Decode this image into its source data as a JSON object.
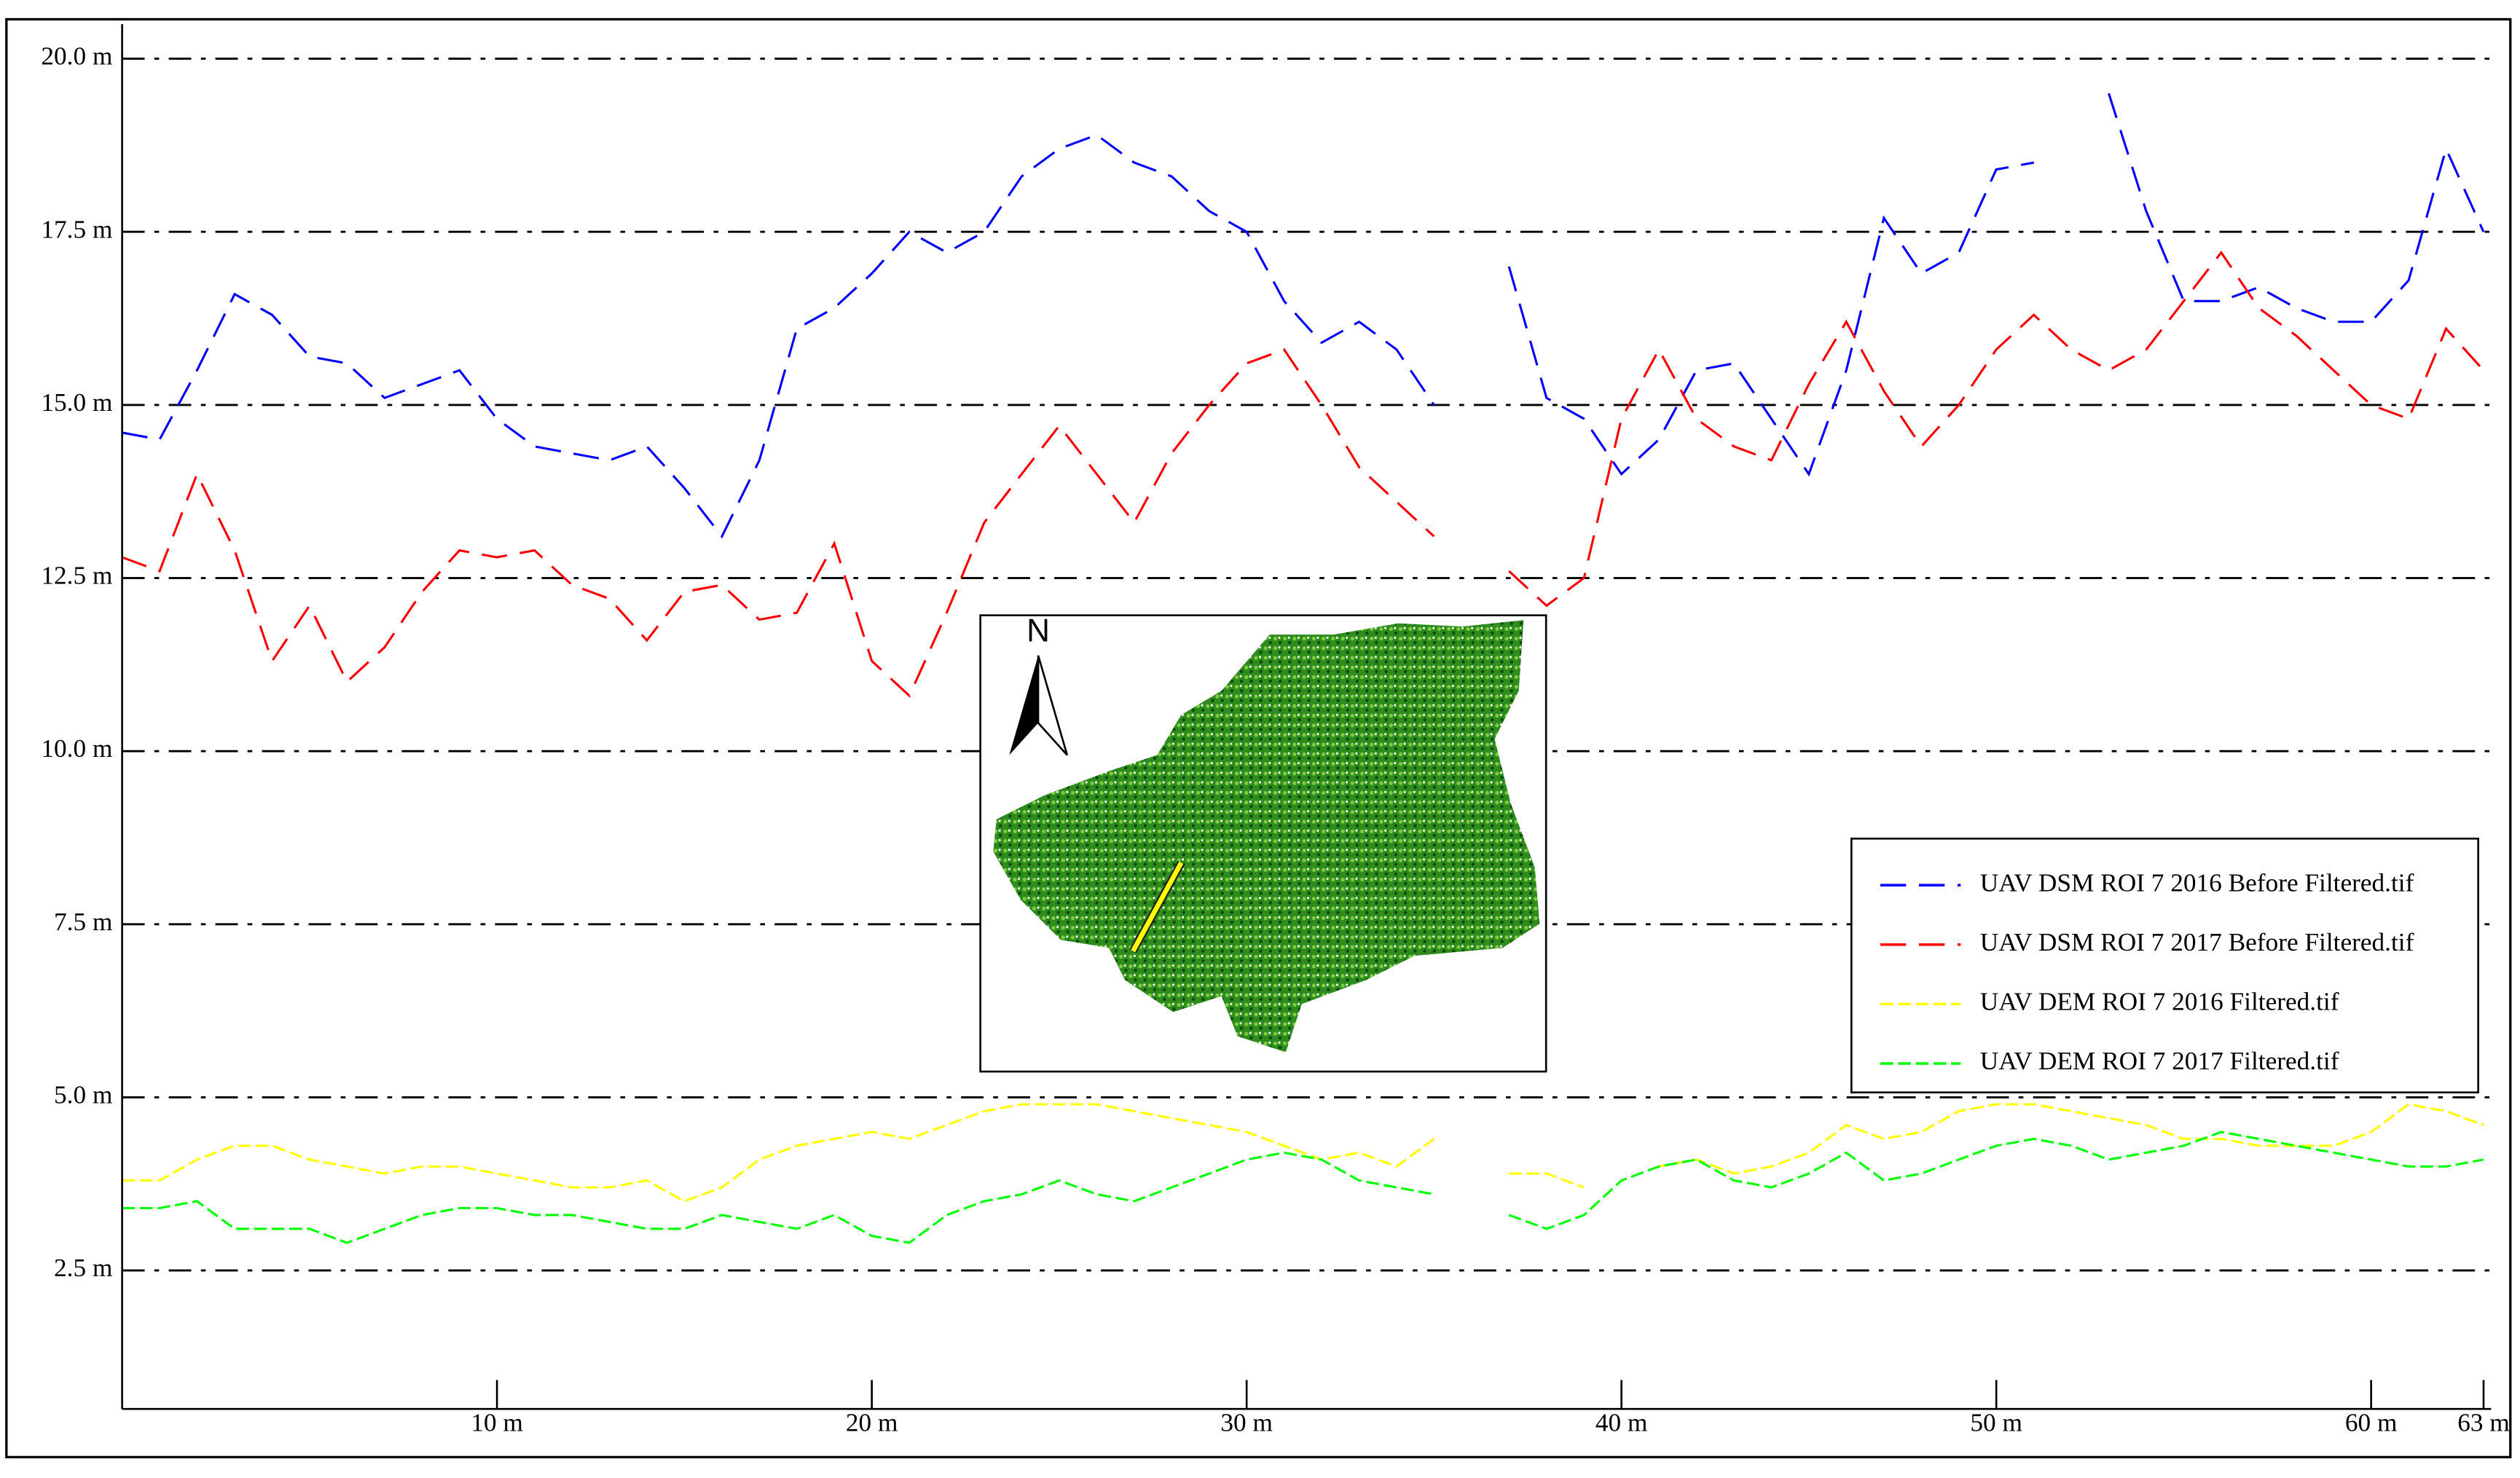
{
  "chart_data": {
    "type": "line",
    "x": [
      0,
      1,
      2,
      3,
      4,
      5,
      6,
      7,
      8,
      9,
      10,
      11,
      12,
      13,
      14,
      15,
      16,
      17,
      18,
      19,
      20,
      21,
      22,
      23,
      24,
      25,
      26,
      27,
      28,
      29,
      30,
      31,
      32,
      33,
      34,
      35,
      36,
      37,
      38,
      39,
      40,
      41,
      42,
      43,
      44,
      45,
      46,
      47,
      48,
      49,
      50,
      51,
      52,
      53,
      54,
      55,
      56,
      57,
      58,
      59,
      60,
      61,
      62,
      63
    ],
    "series": [
      {
        "name": "UAV DSM ROI 7 2016 Before Filtered.tif",
        "color": "#0000ff",
        "values": [
          14.6,
          14.5,
          15.5,
          16.6,
          16.3,
          15.7,
          15.6,
          15.1,
          15.3,
          15.5,
          14.8,
          14.4,
          14.3,
          14.2,
          14.4,
          13.8,
          13.1,
          14.2,
          16.1,
          16.4,
          16.9,
          17.5,
          17.2,
          17.5,
          18.3,
          18.7,
          18.9,
          18.5,
          18.3,
          17.8,
          17.5,
          16.5,
          15.9,
          16.2,
          15.8,
          15.0,
          null,
          17.0,
          15.1,
          14.8,
          14.0,
          14.5,
          15.5,
          15.6,
          14.8,
          14.0,
          15.5,
          17.7,
          16.9,
          17.2,
          18.4,
          18.5,
          null,
          19.5,
          17.8,
          16.5,
          16.5,
          16.7,
          16.4,
          16.2,
          16.2,
          16.8,
          18.7,
          17.5
        ]
      },
      {
        "name": "UAV DSM ROI 7 2017 Before Filtered.tif",
        "color": "#ff0000",
        "values": [
          12.8,
          12.6,
          14.0,
          12.9,
          11.3,
          12.1,
          11.0,
          11.5,
          12.3,
          12.9,
          12.8,
          12.9,
          12.4,
          12.2,
          11.6,
          12.3,
          12.4,
          11.9,
          12.0,
          13.0,
          11.3,
          10.8,
          12.0,
          13.3,
          14.0,
          14.7,
          14.0,
          13.3,
          14.3,
          15.0,
          15.6,
          15.8,
          15.0,
          14.1,
          13.6,
          13.1,
          null,
          12.6,
          12.1,
          12.5,
          14.8,
          15.8,
          14.8,
          14.4,
          14.2,
          15.3,
          16.2,
          15.2,
          14.4,
          15.0,
          15.8,
          16.3,
          15.8,
          15.5,
          15.8,
          16.5,
          17.2,
          16.4,
          16.0,
          15.5,
          15.0,
          14.8,
          16.1,
          15.5
        ]
      },
      {
        "name": "UAV DEM ROI 7 2016 Filtered.tif",
        "color": "#ffff00",
        "values": [
          3.8,
          3.8,
          4.1,
          4.3,
          4.3,
          4.1,
          4.0,
          3.9,
          4.0,
          4.0,
          3.9,
          3.8,
          3.7,
          3.7,
          3.8,
          3.5,
          3.7,
          4.1,
          4.3,
          4.4,
          4.5,
          4.4,
          4.6,
          4.8,
          4.9,
          4.9,
          4.9,
          4.8,
          4.7,
          4.6,
          4.5,
          4.3,
          4.1,
          4.2,
          4.0,
          4.4,
          null,
          3.9,
          3.9,
          3.7,
          null,
          4.0,
          4.1,
          3.9,
          4.0,
          4.2,
          4.6,
          4.4,
          4.5,
          4.8,
          4.9,
          4.9,
          4.8,
          4.7,
          4.6,
          4.4,
          4.4,
          4.3,
          4.3,
          4.3,
          4.5,
          4.9,
          4.8,
          4.6
        ]
      },
      {
        "name": "UAV DEM ROI 7 2017 Filtered.tif",
        "color": "#00ff00",
        "values": [
          3.4,
          3.4,
          3.5,
          3.1,
          3.1,
          3.1,
          2.9,
          3.1,
          3.3,
          3.4,
          3.4,
          3.3,
          3.3,
          3.2,
          3.1,
          3.1,
          3.3,
          3.2,
          3.1,
          3.3,
          3.0,
          2.9,
          3.3,
          3.5,
          3.6,
          3.8,
          3.6,
          3.5,
          3.7,
          3.9,
          4.1,
          4.2,
          4.1,
          3.8,
          3.7,
          3.6,
          null,
          3.3,
          3.1,
          3.3,
          3.8,
          4.0,
          4.1,
          3.8,
          3.7,
          3.9,
          4.2,
          3.8,
          3.9,
          4.1,
          4.3,
          4.4,
          4.3,
          4.1,
          4.2,
          4.3,
          4.5,
          4.4,
          4.3,
          4.2,
          4.1,
          4.0,
          4.0,
          4.1
        ]
      }
    ],
    "xlim": [
      0,
      63.2
    ],
    "ylim": [
      0.5,
      20.5
    ],
    "xticks": [
      {
        "value": 10,
        "label": "10 m"
      },
      {
        "value": 20,
        "label": "20 m"
      },
      {
        "value": 30,
        "label": "30 m"
      },
      {
        "value": 40,
        "label": "40 m"
      },
      {
        "value": 50,
        "label": "50 m"
      },
      {
        "value": 60,
        "label": "60 m"
      },
      {
        "value": 63,
        "label": "63 m"
      }
    ],
    "yticks": [
      {
        "value": 2.5,
        "label": "2.5 m"
      },
      {
        "value": 5,
        "label": "5.0 m"
      },
      {
        "value": 7.5,
        "label": "7.5 m"
      },
      {
        "value": 10,
        "label": "10.0 m"
      },
      {
        "value": 12.5,
        "label": "12.5 m"
      },
      {
        "value": 15,
        "label": "15.0 m"
      },
      {
        "value": 17.5,
        "label": "17.5 m"
      },
      {
        "value": 20,
        "label": "20.0 m"
      }
    ],
    "grid": true,
    "legend": "lower right"
  },
  "inset": {
    "north_label": "N"
  }
}
